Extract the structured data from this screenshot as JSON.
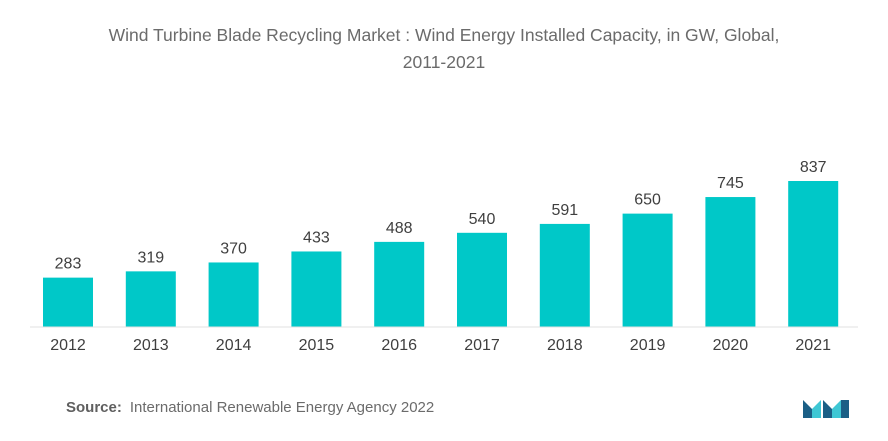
{
  "header": {
    "title_line1": "Wind Turbine Blade Recycling Market : Wind Energy Installed Capacity, in GW, Global,",
    "title_line2": "2011-2021"
  },
  "footer": {
    "source_label": "Source:",
    "source_text": "International Renewable Energy Agency 2022"
  },
  "logo": {
    "icon": "mordor-intelligence-logo-icon",
    "colors": [
      "#1b5f86",
      "#3ec7d4"
    ]
  },
  "chart_data": {
    "type": "bar",
    "title": "Wind Turbine Blade Recycling Market : Wind Energy Installed Capacity, in GW, Global, 2011-2021",
    "xlabel": "",
    "ylabel": "",
    "categories": [
      "2012",
      "2013",
      "2014",
      "2015",
      "2016",
      "2017",
      "2018",
      "2019",
      "2020",
      "2021"
    ],
    "values": [
      283,
      319,
      370,
      433,
      488,
      540,
      591,
      650,
      745,
      837
    ],
    "data_labels": [
      "283",
      "319",
      "370",
      "433",
      "488",
      "540",
      "591",
      "650",
      "745",
      "837"
    ],
    "ylim": [
      0,
      837
    ],
    "grid": false,
    "legend": "none",
    "bar_color": "#00c8c8"
  }
}
